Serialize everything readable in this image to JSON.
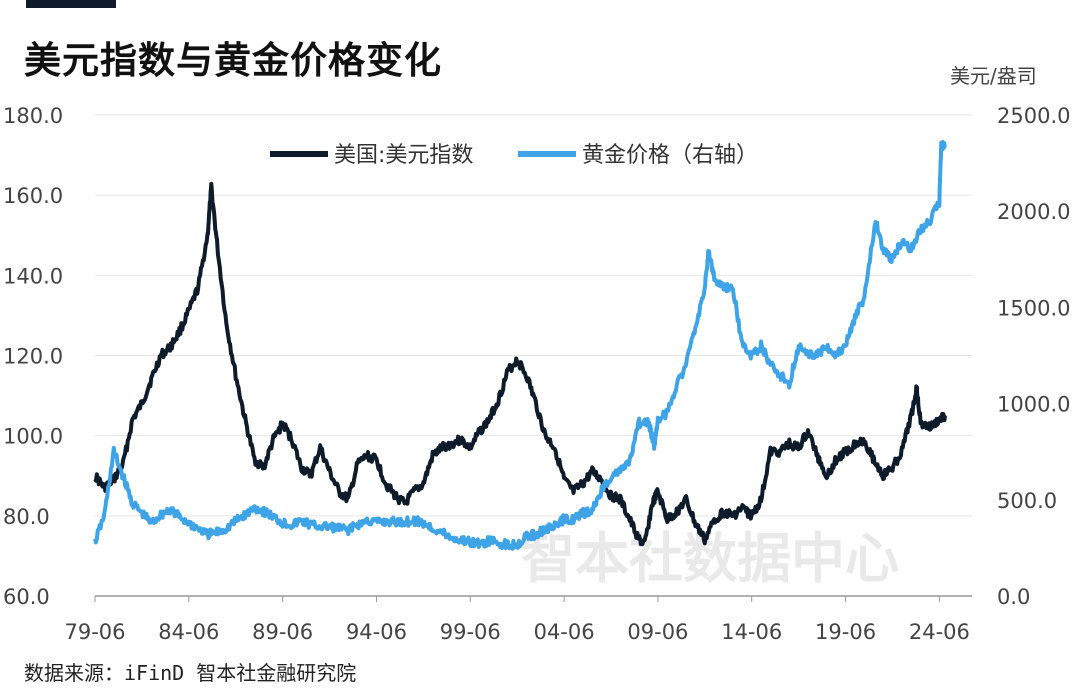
{
  "chart_data": {
    "type": "line",
    "title": "美元指数与黄金价格变化",
    "y2_unit": "美元/盎司",
    "source": "数据来源：iFinD 智本社金融研究院",
    "watermark": "智本社数据中心",
    "x_ticks": [
      "79-06",
      "84-06",
      "89-06",
      "94-06",
      "99-06",
      "04-06",
      "09-06",
      "14-06",
      "19-06",
      "24-06"
    ],
    "y_left": {
      "min": 60,
      "max": 180,
      "ticks": [
        "60.0",
        "80.0",
        "100.0",
        "120.0",
        "140.0",
        "160.0",
        "180.0"
      ]
    },
    "y_right": {
      "min": 0,
      "max": 2500,
      "ticks": [
        "0.0",
        "500.0",
        "1000.0",
        "1500.0",
        "2000.0",
        "2500.0"
      ]
    },
    "grid": true,
    "legend_position": "top-center",
    "x_domain": [
      1979.0,
      2024.3
    ],
    "series": [
      {
        "name": "美国:美元指数",
        "axis": "left",
        "color": "#0d1b2a",
        "x": [
          1979.0,
          1979.5,
          1980.0,
          1980.5,
          1981.0,
          1981.5,
          1982.0,
          1982.5,
          1983.0,
          1983.5,
          1984.0,
          1984.5,
          1985.0,
          1985.2,
          1985.5,
          1986.0,
          1986.5,
          1987.0,
          1987.5,
          1988.0,
          1988.5,
          1989.0,
          1989.5,
          1990.0,
          1990.5,
          1991.0,
          1991.5,
          1992.0,
          1992.5,
          1993.0,
          1993.5,
          1994.0,
          1994.5,
          1995.0,
          1995.5,
          1996.0,
          1996.5,
          1997.0,
          1997.5,
          1998.0,
          1998.5,
          1999.0,
          1999.5,
          2000.0,
          2000.5,
          2001.0,
          2001.5,
          2002.0,
          2002.5,
          2003.0,
          2003.5,
          2004.0,
          2004.5,
          2005.0,
          2005.5,
          2006.0,
          2006.5,
          2007.0,
          2007.5,
          2008.0,
          2008.3,
          2008.7,
          2009.0,
          2009.5,
          2010.0,
          2010.5,
          2011.0,
          2011.5,
          2012.0,
          2012.5,
          2013.0,
          2013.5,
          2014.0,
          2014.5,
          2015.0,
          2015.5,
          2016.0,
          2016.5,
          2017.0,
          2017.5,
          2018.0,
          2018.5,
          2019.0,
          2019.5,
          2020.0,
          2020.5,
          2021.0,
          2021.5,
          2022.0,
          2022.5,
          2022.8,
          2023.0,
          2023.5,
          2024.0,
          2024.3
        ],
        "values": [
          90,
          87,
          89,
          93,
          104,
          108,
          114,
          120,
          122,
          126,
          131,
          137,
          150,
          162,
          148,
          128,
          115,
          104,
          94,
          92,
          99,
          103,
          99,
          92,
          90,
          97,
          91,
          86,
          84,
          93,
          95,
          94,
          88,
          85,
          83,
          86,
          88,
          95,
          97,
          98,
          99,
          97,
          101,
          104,
          109,
          116,
          119,
          115,
          108,
          100,
          97,
          89,
          86,
          88,
          91,
          89,
          85,
          84,
          79,
          74,
          73,
          83,
          86,
          79,
          81,
          84,
          78,
          74,
          79,
          81,
          80,
          82,
          80,
          84,
          96,
          96,
          98,
          97,
          101,
          95,
          90,
          94,
          96,
          98,
          99,
          94,
          90,
          92,
          96,
          105,
          112,
          103,
          102,
          104,
          105
        ]
      },
      {
        "name": "黄金价格（右轴）",
        "axis": "right",
        "color": "#3fa3e8",
        "x": [
          1979.0,
          1979.5,
          1980.0,
          1980.5,
          1981.0,
          1981.5,
          1982.0,
          1982.5,
          1983.0,
          1983.5,
          1984.0,
          1984.5,
          1985.0,
          1985.5,
          1986.0,
          1986.5,
          1987.0,
          1987.5,
          1988.0,
          1988.5,
          1989.0,
          1989.5,
          1990.0,
          1990.5,
          1991.0,
          1991.5,
          1992.0,
          1992.5,
          1993.0,
          1993.5,
          1994.0,
          1994.5,
          1995.0,
          1995.5,
          1996.0,
          1996.5,
          1997.0,
          1997.5,
          1998.0,
          1998.5,
          1999.0,
          1999.5,
          2000.0,
          2000.5,
          2001.0,
          2001.5,
          2002.0,
          2002.5,
          2003.0,
          2003.5,
          2004.0,
          2004.5,
          2005.0,
          2005.5,
          2006.0,
          2006.5,
          2007.0,
          2007.5,
          2008.0,
          2008.5,
          2008.8,
          2009.0,
          2009.5,
          2010.0,
          2010.5,
          2011.0,
          2011.5,
          2011.7,
          2012.0,
          2012.5,
          2013.0,
          2013.5,
          2014.0,
          2014.5,
          2015.0,
          2015.5,
          2016.0,
          2016.5,
          2017.0,
          2017.5,
          2018.0,
          2018.5,
          2019.0,
          2019.5,
          2020.0,
          2020.6,
          2021.0,
          2021.5,
          2022.0,
          2022.5,
          2023.0,
          2023.5,
          2024.0,
          2024.1,
          2024.3
        ],
        "values": [
          280,
          420,
          750,
          620,
          480,
          430,
          380,
          420,
          450,
          410,
          380,
          350,
          320,
          330,
          350,
          390,
          420,
          460,
          440,
          410,
          380,
          370,
          390,
          370,
          360,
          360,
          350,
          345,
          370,
          390,
          385,
          385,
          385,
          385,
          390,
          380,
          350,
          330,
          300,
          290,
          280,
          270,
          285,
          275,
          265,
          270,
          310,
          320,
          350,
          360,
          400,
          400,
          430,
          440,
          550,
          620,
          650,
          700,
          900,
          900,
          780,
          920,
          950,
          1100,
          1200,
          1400,
          1600,
          1800,
          1650,
          1600,
          1600,
          1300,
          1250,
          1300,
          1200,
          1150,
          1100,
          1300,
          1250,
          1260,
          1300,
          1250,
          1300,
          1450,
          1550,
          1950,
          1800,
          1750,
          1850,
          1800,
          1900,
          1950,
          2050,
          2350,
          2330
        ]
      }
    ]
  }
}
